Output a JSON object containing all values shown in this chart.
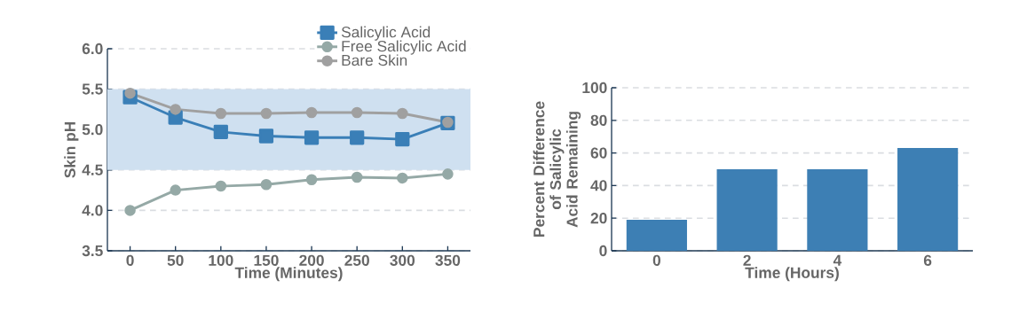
{
  "chart_data": [
    {
      "type": "line",
      "xlabel": "Time (Minutes)",
      "ylabel": "Skin pH",
      "x": [
        0,
        50,
        100,
        150,
        200,
        250,
        300,
        350
      ],
      "series": [
        {
          "name": "Salicylic Acid",
          "color": "#3a7fb7",
          "marker": "square",
          "values": [
            5.4,
            5.15,
            4.97,
            4.92,
            4.9,
            4.9,
            4.88,
            5.08
          ]
        },
        {
          "name": "Free Salicylic Acid",
          "color": "#95a9a6",
          "marker": "circle",
          "values": [
            4.0,
            4.25,
            4.3,
            4.32,
            4.38,
            4.41,
            4.4,
            4.45
          ]
        },
        {
          "name": "Bare Skin",
          "color": "#a0a0a0",
          "marker": "circle",
          "values": [
            5.45,
            5.25,
            5.2,
            5.2,
            5.21,
            5.21,
            5.2,
            5.09
          ]
        }
      ],
      "xlim": [
        -25,
        375
      ],
      "xticks": [
        0,
        50,
        100,
        150,
        200,
        250,
        300,
        350
      ],
      "ylim": [
        3.5,
        6.0
      ],
      "yticks": [
        {
          "value": 3.5,
          "label": "3.5"
        },
        {
          "value": 4.0,
          "label": "4.0"
        },
        {
          "value": 4.5,
          "label": "4.5"
        },
        {
          "value": 5.0,
          "label": "5.0"
        },
        {
          "value": 5.5,
          "label": "5.5"
        },
        {
          "value": 6.0,
          "label": "6.0"
        }
      ],
      "bands": [
        {
          "axis": "y",
          "from": 4.5,
          "to": 5.5,
          "color": "#cfe0f0"
        }
      ],
      "grid": "y",
      "legend": "top right",
      "line_style": "solid"
    },
    {
      "type": "bar",
      "xlabel": "Time (Hours)",
      "ylabel": "Percent Difference of Salicylic Acid Remaining",
      "categories": [
        "0",
        "2",
        "4",
        "6"
      ],
      "values": [
        19,
        50,
        50,
        63
      ],
      "color": "#3d7fb4",
      "ylim": [
        0,
        100
      ],
      "yticks": [
        0,
        20,
        40,
        60,
        80,
        100
      ],
      "grid": "y"
    }
  ]
}
